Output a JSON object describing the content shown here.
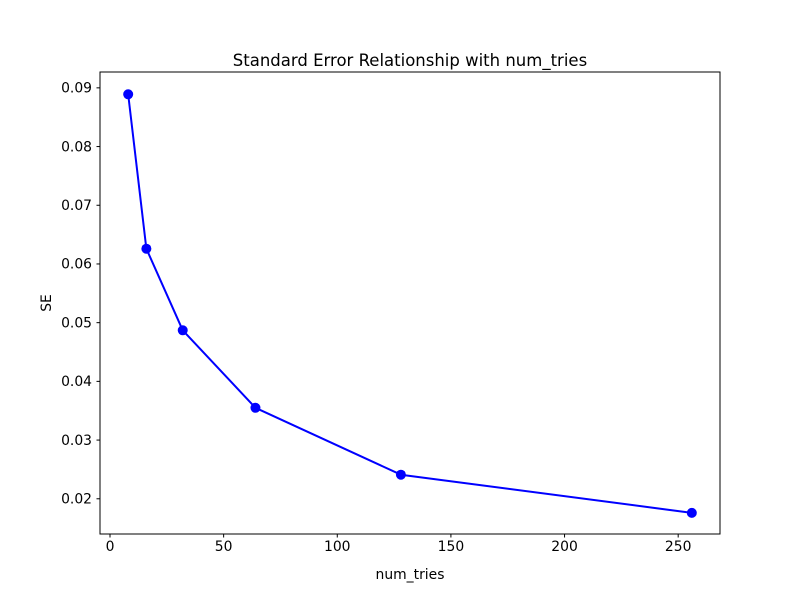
{
  "chart_data": {
    "type": "line",
    "title": "Standard Error Relationship with num_tries",
    "xlabel": "num_tries",
    "ylabel": "SE",
    "series": [
      {
        "name": "SE vs num_tries",
        "x": [
          8,
          16,
          32,
          64,
          128,
          256
        ],
        "y": [
          0.0889,
          0.0626,
          0.0487,
          0.0355,
          0.0241,
          0.0176
        ],
        "line_color": "#0000ff",
        "marker": "circle",
        "marker_color": "#0000ff"
      }
    ],
    "xlim": [
      -4.4,
      268.4
    ],
    "ylim": [
      0.014,
      0.0927
    ],
    "xticks": [
      0,
      50,
      100,
      150,
      200,
      250
    ],
    "xticklabels": [
      "0",
      "50",
      "100",
      "150",
      "200",
      "250"
    ],
    "yticks": [
      0.02,
      0.03,
      0.04,
      0.05,
      0.06,
      0.07,
      0.08,
      0.09
    ],
    "yticklabels": [
      "0.02",
      "0.03",
      "0.04",
      "0.05",
      "0.06",
      "0.07",
      "0.08",
      "0.09"
    ],
    "grid": false,
    "legend": "none",
    "spine_color": "#000000",
    "tick_color": "#000000",
    "background_color": "#ffffff"
  }
}
